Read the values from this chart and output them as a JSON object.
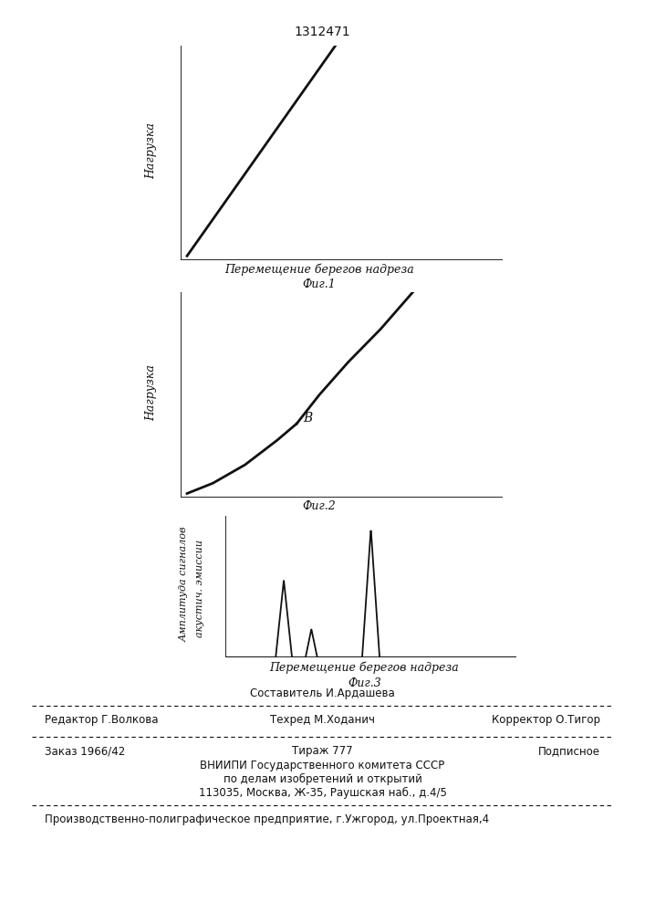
{
  "title": "1312471",
  "fig1_xlabel": "Перемещение берегов надреза",
  "fig1_caption": "Фиг.1",
  "fig2_caption": "Фиг.2",
  "fig2_label_B": "В",
  "fig3_xlabel": "Перемещение берегов надреза",
  "fig3_ylabel_line1": "Амплитуда сигналов",
  "fig3_ylabel_line2": "акустич. эмиссии",
  "fig3_caption": "Фиг.3",
  "ylabel_fig1": "Нагрузка",
  "ylabel_fig2": "Нагрузка",
  "footer_line1": "Составитель И.Ардашева",
  "footer_line2_left": "Редактор Г.Волкова",
  "footer_line2_mid": "Техред М.Ходанич",
  "footer_line2_right": "Корректор О.Тигор",
  "footer_line3_left": "Заказ 1966/42",
  "footer_line3_mid": "Тираж 777",
  "footer_line3_right": "Подписное",
  "footer_line4": "ВНИИПИ Государственного комитета СССР",
  "footer_line5": "по делам изобретений и открытий",
  "footer_line6": "113035, Москва, Ж-35, Раушская наб., д.4/5",
  "footer_line7": "Производственно-полиграфическое предприятие, г.Ужгород, ул.Проектная,4",
  "bg_color": "#ffffff",
  "line_color": "#111111",
  "text_color": "#111111"
}
